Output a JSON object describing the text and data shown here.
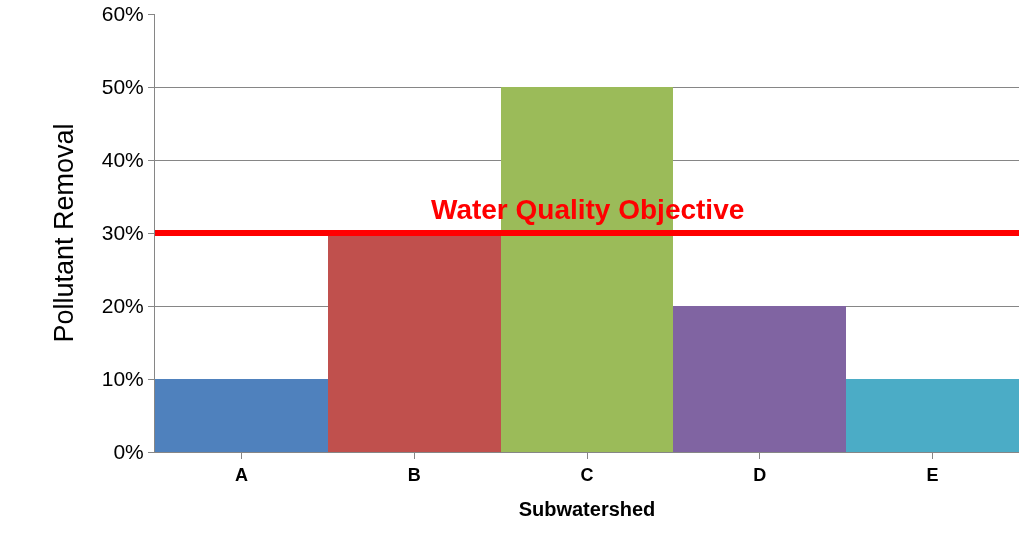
{
  "chart_data": {
    "type": "bar",
    "xlabel": "Subwatershed",
    "ylabel": "Pollutant Removal",
    "categories": [
      "A",
      "B",
      "C",
      "D",
      "E"
    ],
    "values": [
      10,
      30,
      50,
      20,
      10
    ],
    "colors": [
      "#4f81bd",
      "#c0504d",
      "#9bbb59",
      "#8064a2",
      "#4bacc6"
    ],
    "ylim": [
      0,
      60
    ],
    "yticks": [
      {
        "value": 0,
        "label": "0%"
      },
      {
        "value": 10,
        "label": "10%"
      },
      {
        "value": 20,
        "label": "20%"
      },
      {
        "value": 30,
        "label": "30%"
      },
      {
        "value": 40,
        "label": "40%"
      },
      {
        "value": 50,
        "label": "50%"
      },
      {
        "value": 60,
        "label": "60%"
      }
    ],
    "grid": "y",
    "legend": false,
    "ref_lines": [
      {
        "axis": "y",
        "value": 30,
        "label": "Water Quality Objective",
        "color": "#ff0000"
      }
    ]
  }
}
